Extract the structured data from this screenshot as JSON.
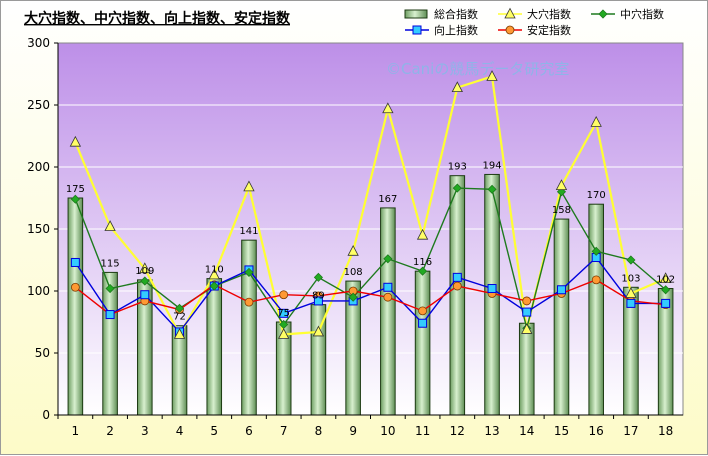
{
  "chart_data": {
    "type": "bar+line",
    "title": "大穴指数、中穴指数、向上指数、安定指数",
    "watermark": "©Caniの競馬データ研究室",
    "categories": [
      "1",
      "2",
      "3",
      "4",
      "5",
      "6",
      "7",
      "8",
      "9",
      "10",
      "11",
      "12",
      "13",
      "14",
      "15",
      "16",
      "17",
      "18"
    ],
    "ylim": [
      0,
      300
    ],
    "yticks": [
      "0",
      "50",
      "100",
      "150",
      "200",
      "250",
      "300"
    ],
    "grid": true,
    "legend_position": "top-right",
    "legend_rows": [
      [
        "総合指数",
        "大穴指数",
        "中穴指数"
      ],
      [
        "向上指数",
        "安定指数"
      ]
    ],
    "bar_series": {
      "name": "総合指数",
      "values": [
        175,
        115,
        109,
        72,
        110,
        141,
        75,
        89,
        108,
        167,
        116,
        193,
        194,
        74,
        158,
        170,
        103,
        102
      ],
      "labels": [
        "175",
        "115",
        "109",
        "72",
        "110",
        "141",
        "75",
        "89",
        "108",
        "167",
        "116",
        "193",
        "194",
        "",
        "158",
        "170",
        "103",
        "102"
      ],
      "color": "#b9dcae"
    },
    "series": [
      {
        "name": "大穴指数",
        "values": [
          220,
          152,
          118,
          65,
          113,
          184,
          65,
          67,
          132,
          247,
          145,
          264,
          273,
          69,
          185,
          236,
          98,
          110
        ],
        "color": "#ffff33",
        "marker": "triangle",
        "marker_fill": "#ffff66"
      },
      {
        "name": "中穴指数",
        "values": [
          174,
          102,
          108,
          86,
          104,
          115,
          73,
          111,
          95,
          126,
          116,
          183,
          182,
          70,
          180,
          132,
          125,
          101
        ],
        "color": "#1e7a1e",
        "marker": "diamond",
        "marker_fill": "#22aa22"
      },
      {
        "name": "向上指数",
        "values": [
          123,
          81,
          97,
          67,
          104,
          117,
          82,
          92,
          92,
          103,
          74,
          111,
          102,
          83,
          101,
          127,
          90,
          90
        ],
        "color": "#0000dd",
        "marker": "square",
        "marker_fill": "#33ccff"
      },
      {
        "name": "安定指数",
        "values": [
          103,
          81,
          92,
          85,
          105,
          91,
          97,
          96,
          100,
          95,
          84,
          104,
          98,
          92,
          98,
          109,
          92,
          89
        ],
        "color": "#ee0000",
        "marker": "circle",
        "marker_fill": "#ff9933"
      }
    ],
    "colors": {
      "plot_top": "#bd8fe8",
      "plot_bottom": "#ffffff",
      "gridline": "#ffffff"
    }
  }
}
